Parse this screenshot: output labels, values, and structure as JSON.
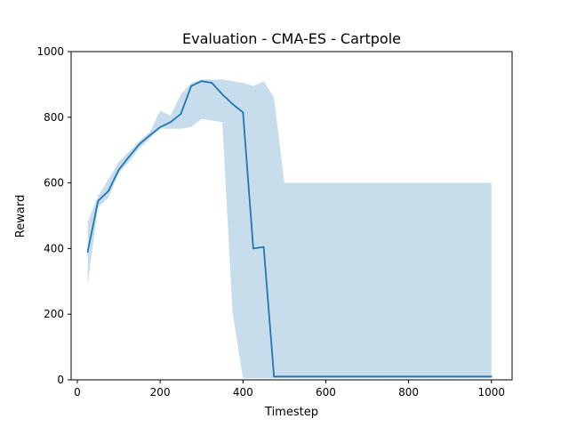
{
  "chart_data": {
    "type": "line",
    "title": "Evaluation - CMA-ES - Cartpole",
    "xlabel": "Timestep",
    "ylabel": "Reward",
    "xlim": [
      -15,
      1050
    ],
    "ylim": [
      0,
      1000
    ],
    "xticks": [
      0,
      200,
      400,
      600,
      800,
      1000
    ],
    "yticks": [
      0,
      200,
      400,
      600,
      800,
      1000
    ],
    "grid": false,
    "legend": "none",
    "series": [
      {
        "color": "#1f77b4",
        "band_color": "#1f77b4",
        "band_opacity": 0.25,
        "x": [
          25,
          50,
          75,
          100,
          125,
          150,
          175,
          200,
          225,
          250,
          275,
          300,
          325,
          350,
          375,
          400,
          425,
          450,
          475,
          500,
          550,
          600,
          650,
          700,
          750,
          800,
          850,
          900,
          950,
          1000
        ],
        "mean": [
          390,
          545,
          575,
          640,
          680,
          718,
          745,
          770,
          785,
          810,
          895,
          910,
          905,
          870,
          840,
          815,
          400,
          405,
          10,
          10,
          10,
          10,
          10,
          10,
          10,
          10,
          10,
          10,
          10,
          10
        ],
        "upper": [
          480,
          560,
          610,
          665,
          695,
          728,
          755,
          820,
          805,
          870,
          905,
          915,
          915,
          915,
          910,
          905,
          895,
          910,
          860,
          600,
          600,
          600,
          600,
          600,
          600,
          600,
          600,
          600,
          600,
          600
        ],
        "lower": [
          290,
          525,
          555,
          630,
          665,
          705,
          735,
          765,
          765,
          765,
          770,
          795,
          790,
          785,
          205,
          5,
          5,
          5,
          5,
          5,
          5,
          5,
          5,
          5,
          5,
          5,
          5,
          5,
          5,
          5
        ]
      }
    ]
  }
}
